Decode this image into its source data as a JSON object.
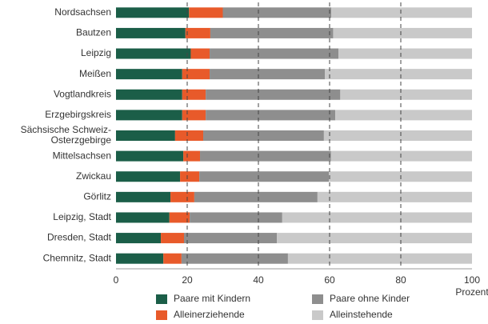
{
  "chart_data": {
    "type": "stacked-barh",
    "categories": [
      "Nordsachsen",
      "Bautzen",
      "Leipzig",
      "Meißen",
      "Vogtlandkreis",
      "Erzgebirgskreis",
      "Sächsische Schweiz-\nOsterzgebirge",
      "Mittelsachsen",
      "Zwickau",
      "Görlitz",
      "Leipzig, Stadt",
      "Dresden, Stadt",
      "Chemnitz, Stadt"
    ],
    "series": [
      {
        "name": "Paare mit Kindern",
        "color": "#1b5e48",
        "values": [
          20.5,
          19.5,
          21,
          18.6,
          18.6,
          18.6,
          16.6,
          18.9,
          18,
          15.3,
          15,
          12.6,
          13.3
        ]
      },
      {
        "name": "Alleinerziehende",
        "color": "#e85a2a",
        "values": [
          9.5,
          7,
          5.3,
          7.7,
          6.6,
          6.6,
          7.9,
          4.7,
          5.4,
          6.7,
          5.7,
          6.5,
          5.1
        ]
      },
      {
        "name": "Paare ohne Kinder",
        "color": "#8e8e8e",
        "values": [
          30.5,
          34.5,
          36.2,
          32.4,
          37.8,
          36.4,
          33.9,
          36.8,
          36.4,
          34.6,
          26,
          26.1,
          29.9
        ]
      },
      {
        "name": "Alleinstehende",
        "color": "#c9c9c9",
        "values": [
          39.5,
          39,
          37.5,
          41.3,
          37,
          38.4,
          41.6,
          39.6,
          40.2,
          43.4,
          53.3,
          54.8,
          51.7
        ]
      }
    ],
    "xlabel": "Prozent",
    "xlim": [
      0,
      100
    ],
    "xticks": [
      0,
      20,
      40,
      60,
      80,
      100
    ],
    "grid": true
  }
}
